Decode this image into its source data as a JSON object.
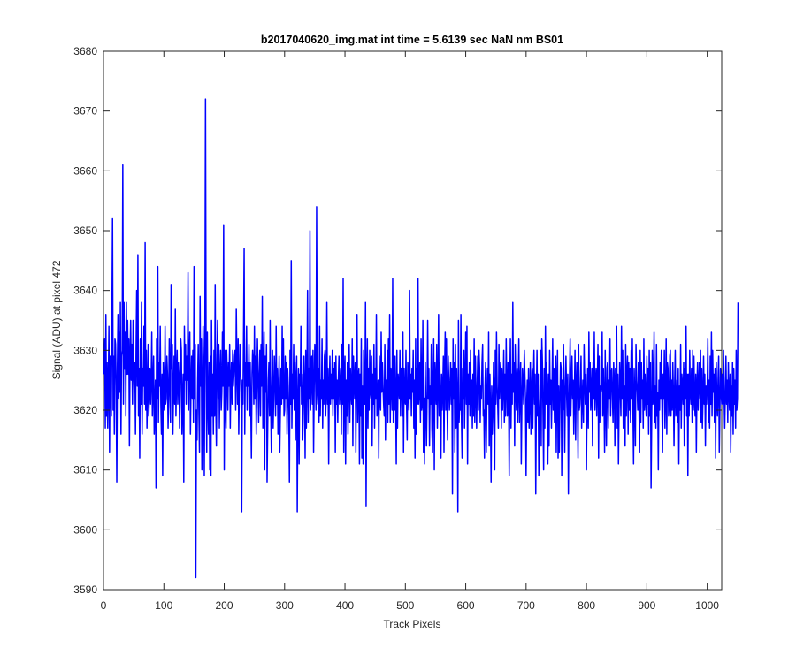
{
  "chart_data": {
    "type": "line",
    "title": "b2017040620_img.mat int time = 5.6139 sec  NaN nm BS01",
    "xlabel": "Track Pixels",
    "ylabel": "Signal (ADU) at pixel 472",
    "xlim": [
      0,
      1024
    ],
    "ylim": [
      3590,
      3680
    ],
    "xticks": [
      0,
      100,
      200,
      300,
      400,
      500,
      600,
      700,
      800,
      900,
      1000
    ],
    "yticks": [
      3590,
      3600,
      3610,
      3620,
      3630,
      3640,
      3650,
      3660,
      3670,
      3680
    ],
    "grid": false,
    "line_color": "#0000ff",
    "series": [
      {
        "name": "",
        "x_start": 1,
        "x_step": 1,
        "values": [
          3626,
          3632,
          3617,
          3636,
          3619,
          3628,
          3617,
          3624,
          3634,
          3613,
          3629,
          3623,
          3619,
          3635,
          3652,
          3620,
          3629,
          3616,
          3632,
          3631,
          3624,
          3608,
          3627,
          3636,
          3622,
          3633,
          3623,
          3638,
          3616,
          3629,
          3630,
          3661,
          3621,
          3638,
          3627,
          3633,
          3619,
          3638,
          3626,
          3635,
          3626,
          3632,
          3614,
          3629,
          3635,
          3625,
          3631,
          3621,
          3635,
          3627,
          3623,
          3628,
          3616,
          3630,
          3640,
          3624,
          3646,
          3619,
          3627,
          3612,
          3632,
          3621,
          3638,
          3616,
          3627,
          3624,
          3634,
          3621,
          3648,
          3620,
          3630,
          3617,
          3624,
          3631,
          3619,
          3623,
          3627,
          3621,
          3625,
          3633,
          3619,
          3624,
          3629,
          3616,
          3621,
          3625,
          3607,
          3632,
          3622,
          3644,
          3618,
          3628,
          3624,
          3634,
          3621,
          3616,
          3626,
          3609,
          3628,
          3623,
          3620,
          3634,
          3621,
          3622,
          3629,
          3626,
          3617,
          3622,
          3632,
          3624,
          3618,
          3641,
          3627,
          3631,
          3616,
          3623,
          3629,
          3621,
          3637,
          3619,
          3625,
          3630,
          3621,
          3628,
          3626,
          3617,
          3623,
          3632,
          3630,
          3616,
          3622,
          3626,
          3608,
          3634,
          3625,
          3631,
          3621,
          3629,
          3625,
          3643,
          3620,
          3628,
          3633,
          3616,
          3624,
          3629,
          3622,
          3630,
          3618,
          3644,
          3622,
          3631,
          3592,
          3620,
          3615,
          3625,
          3631,
          3620,
          3613,
          3639,
          3624,
          3632,
          3610,
          3622,
          3634,
          3626,
          3609,
          3633,
          3672,
          3628,
          3613,
          3633,
          3621,
          3616,
          3628,
          3610,
          3629,
          3609,
          3635,
          3619,
          3626,
          3616,
          3630,
          3619,
          3641,
          3621,
          3614,
          3628,
          3635,
          3622,
          3631,
          3617,
          3626,
          3630,
          3620,
          3623,
          3633,
          3624,
          3651,
          3610,
          3630,
          3621,
          3617,
          3630,
          3626,
          3620,
          3628,
          3624,
          3631,
          3617,
          3625,
          3628,
          3621,
          3630,
          3624,
          3626,
          3629,
          3630,
          3620,
          3637,
          3627,
          3621,
          3632,
          3616,
          3624,
          3631,
          3628,
          3623,
          3603,
          3625,
          3621,
          3633,
          3647,
          3616,
          3628,
          3624,
          3634,
          3620,
          3628,
          3624,
          3631,
          3619,
          3628,
          3621,
          3612,
          3626,
          3630,
          3628,
          3621,
          3634,
          3622,
          3629,
          3616,
          3624,
          3632,
          3625,
          3618,
          3626,
          3630,
          3619,
          3631,
          3624,
          3639,
          3617,
          3625,
          3633,
          3610,
          3629,
          3623,
          3631,
          3608,
          3617,
          3625,
          3628,
          3619,
          3635,
          3621,
          3613,
          3624,
          3630,
          3617,
          3622,
          3629,
          3625,
          3619,
          3634,
          3621,
          3627,
          3616,
          3623,
          3629,
          3613,
          3620,
          3627,
          3621,
          3634,
          3622,
          3632,
          3619,
          3620,
          3629,
          3622,
          3628,
          3616,
          3627,
          3624,
          3619,
          3608,
          3630,
          3621,
          3645,
          3617,
          3626,
          3622,
          3631,
          3620,
          3628,
          3615,
          3625,
          3629,
          3603,
          3621,
          3627,
          3611,
          3626,
          3624,
          3634,
          3621,
          3626,
          3615,
          3621,
          3629,
          3624,
          3612,
          3630,
          3617,
          3625,
          3640,
          3618,
          3627,
          3622,
          3650,
          3620,
          3625,
          3629,
          3621,
          3630,
          3613,
          3624,
          3631,
          3627,
          3620,
          3654,
          3623,
          3621,
          3627,
          3618,
          3634,
          3619,
          3625,
          3622,
          3632,
          3617,
          3625,
          3621,
          3629,
          3630,
          3619,
          3623,
          3638,
          3621,
          3627,
          3611,
          3624,
          3629,
          3621,
          3626,
          3622,
          3630,
          3619,
          3627,
          3622,
          3628,
          3613,
          3629,
          3621,
          3625,
          3618,
          3625,
          3629,
          3621,
          3624,
          3627,
          3616,
          3631,
          3621,
          3642,
          3613,
          3626,
          3629,
          3611,
          3625,
          3619,
          3628,
          3616,
          3626,
          3631,
          3618,
          3627,
          3623,
          3621,
          3632,
          3614,
          3629,
          3625,
          3622,
          3628,
          3613,
          3627,
          3636,
          3618,
          3625,
          3627,
          3611,
          3626,
          3619,
          3632,
          3612,
          3624,
          3611,
          3630,
          3621,
          3621,
          3638,
          3604,
          3625,
          3632,
          3617,
          3627,
          3620,
          3630,
          3623,
          3622,
          3629,
          3614,
          3626,
          3621,
          3631,
          3617,
          3627,
          3622,
          3636,
          3619,
          3621,
          3625,
          3612,
          3629,
          3622,
          3620,
          3633,
          3623,
          3628,
          3624,
          3621,
          3619,
          3631,
          3615,
          3625,
          3622,
          3630,
          3618,
          3632,
          3621,
          3636,
          3618,
          3627,
          3625,
          3620,
          3642,
          3618,
          3625,
          3620,
          3629,
          3622,
          3611,
          3630,
          3617,
          3626,
          3624,
          3622,
          3630,
          3619,
          3627,
          3625,
          3619,
          3633,
          3613,
          3627,
          3622,
          3621,
          3630,
          3621,
          3615,
          3628,
          3624,
          3620,
          3640,
          3622,
          3626,
          3619,
          3627,
          3623,
          3630,
          3617,
          3625,
          3612,
          3632,
          3616,
          3627,
          3621,
          3642,
          3621,
          3623,
          3628,
          3618,
          3632,
          3620,
          3621,
          3635,
          3613,
          3622,
          3611,
          3628,
          3621,
          3614,
          3622,
          3635,
          3622,
          3627,
          3614,
          3624,
          3621,
          3631,
          3617,
          3613,
          3626,
          3632,
          3610,
          3628,
          3625,
          3621,
          3631,
          3617,
          3624,
          3636,
          3619,
          3628,
          3622,
          3612,
          3626,
          3620,
          3624,
          3629,
          3613,
          3627,
          3633,
          3620,
          3632,
          3621,
          3615,
          3629,
          3625,
          3620,
          3624,
          3628,
          3621,
          3627,
          3606,
          3632,
          3622,
          3628,
          3613,
          3631,
          3617,
          3627,
          3622,
          3603,
          3635,
          3618,
          3621,
          3620,
          3636,
          3618,
          3612,
          3627,
          3622,
          3630,
          3617,
          3625,
          3633,
          3621,
          3634,
          3611,
          3626,
          3621,
          3628,
          3619,
          3630,
          3622,
          3625,
          3617,
          3626,
          3619,
          3632,
          3618,
          3629,
          3623,
          3617,
          3624,
          3629,
          3620,
          3630,
          3627,
          3618,
          3624,
          3622,
          3628,
          3631,
          3619,
          3620,
          3612,
          3624,
          3628,
          3613,
          3622,
          3627,
          3621,
          3633,
          3614,
          3626,
          3620,
          3608,
          3624,
          3616,
          3619,
          3628,
          3623,
          3610,
          3630,
          3621,
          3633,
          3624,
          3621,
          3617,
          3631,
          3622,
          3626,
          3628,
          3617,
          3627,
          3620,
          3624,
          3630,
          3618,
          3626,
          3619,
          3632,
          3624,
          3619,
          3628,
          3623,
          3609,
          3624,
          3632,
          3617,
          3626,
          3621,
          3638,
          3623,
          3628,
          3614,
          3631,
          3624,
          3620,
          3627,
          3618,
          3624,
          3632,
          3618,
          3624,
          3628,
          3611,
          3621,
          3627,
          3624,
          3621,
          3630,
          3626,
          3622,
          3609,
          3621,
          3625,
          3618,
          3627,
          3617,
          3622,
          3628,
          3616,
          3623,
          3627,
          3617,
          3625,
          3630,
          3621,
          3626,
          3606,
          3622,
          3630,
          3619,
          3626,
          3609,
          3619,
          3622,
          3630,
          3614,
          3632,
          3628,
          3619,
          3610,
          3627,
          3617,
          3634,
          3621,
          3628,
          3623,
          3611,
          3626,
          3614,
          3630,
          3621,
          3625,
          3617,
          3624,
          3632,
          3620,
          3627,
          3618,
          3622,
          3629,
          3613,
          3625,
          3630,
          3612,
          3624,
          3613,
          3621,
          3628,
          3627,
          3609,
          3625,
          3620,
          3631,
          3622,
          3613,
          3624,
          3629,
          3623,
          3619,
          3626,
          3606,
          3621,
          3626,
          3632,
          3619,
          3624,
          3629,
          3622,
          3625,
          3616,
          3623,
          3630,
          3615,
          3624,
          3628,
          3622,
          3612,
          3631,
          3620,
          3621,
          3624,
          3629,
          3617,
          3622,
          3625,
          3618,
          3631,
          3625,
          3621,
          3626,
          3610,
          3622,
          3627,
          3617,
          3633,
          3623,
          3628,
          3620,
          3623,
          3627,
          3614,
          3628,
          3622,
          3633,
          3620,
          3624,
          3627,
          3619,
          3625,
          3631,
          3612,
          3629,
          3618,
          3624,
          3623,
          3624,
          3633,
          3619,
          3627,
          3622,
          3613,
          3630,
          3621,
          3614,
          3627,
          3628,
          3617,
          3625,
          3622,
          3632,
          3619,
          3626,
          3627,
          3622,
          3618,
          3628,
          3625,
          3614,
          3627,
          3621,
          3634,
          3617,
          3626,
          3611,
          3621,
          3628,
          3624,
          3619,
          3634,
          3622,
          3630,
          3617,
          3621,
          3624,
          3614,
          3631,
          3619,
          3626,
          3629,
          3616,
          3628,
          3620,
          3627,
          3618,
          3630,
          3622,
          3632,
          3620,
          3611,
          3627,
          3622,
          3614,
          3631,
          3625,
          3623,
          3620,
          3628,
          3621,
          3613,
          3630,
          3618,
          3628,
          3622,
          3625,
          3617,
          3632,
          3620,
          3626,
          3622,
          3619,
          3629,
          3621,
          3627,
          3616,
          3630,
          3619,
          3628,
          3607,
          3618,
          3630,
          3621,
          3624,
          3633,
          3618,
          3624,
          3617,
          3631,
          3619,
          3623,
          3610,
          3625,
          3620,
          3628,
          3622,
          3630,
          3621,
          3613,
          3626,
          3622,
          3630,
          3617,
          3622,
          3632,
          3616,
          3628,
          3627,
          3619,
          3621,
          3629,
          3630,
          3619,
          3625,
          3620,
          3628,
          3623,
          3614,
          3624,
          3630,
          3619,
          3621,
          3625,
          3618,
          3627,
          3611,
          3624,
          3620,
          3631,
          3617,
          3626,
          3624,
          3621,
          3628,
          3614,
          3627,
          3622,
          3634,
          3619,
          3626,
          3609,
          3626,
          3619,
          3630,
          3623,
          3621,
          3627,
          3618,
          3630,
          3620,
          3629,
          3622,
          3619,
          3626,
          3613,
          3624,
          3628,
          3620,
          3624,
          3628,
          3622,
          3630,
          3618,
          3627,
          3617,
          3622,
          3629,
          3621,
          3626,
          3614,
          3624,
          3621,
          3624,
          3632,
          3618,
          3625,
          3617,
          3629,
          3621,
          3633,
          3619,
          3630,
          3623,
          3626,
          3618,
          3627,
          3612,
          3628,
          3622,
          3619,
          3625,
          3629,
          3613,
          3620,
          3627,
          3623,
          3621,
          3626,
          3621,
          3630,
          3622,
          3617,
          3623,
          3629,
          3621,
          3625,
          3618,
          3628,
          3623,
          3620,
          3626,
          3613,
          3624,
          3619,
          3628,
          3616,
          3627,
          3621,
          3625,
          3617,
          3630,
          3620,
          3622,
          3638
        ]
      }
    ]
  }
}
